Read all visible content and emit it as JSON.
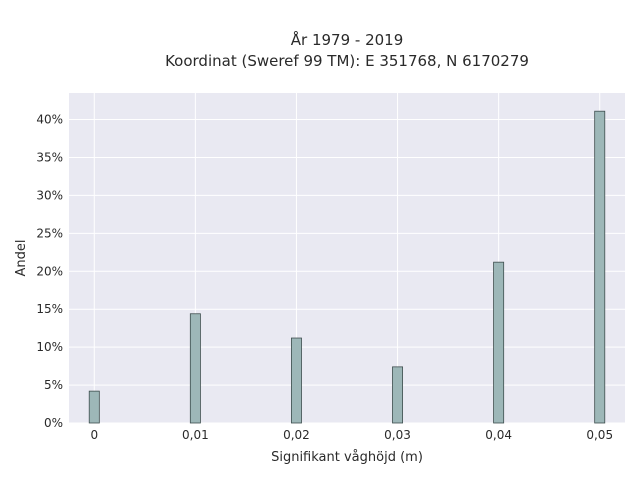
{
  "chart_data": {
    "type": "bar",
    "title_line1": "År 1979 - 2019",
    "title_line2": "Koordinat (Sweref 99 TM): E 351768, N 6170279",
    "xlabel": "Signifikant våghöjd (m)",
    "ylabel": "Andel",
    "x_tick_labels": [
      "0",
      "0,01",
      "0,02",
      "0,03",
      "0,04",
      "0,05"
    ],
    "y_tick_labels": [
      "0%",
      "5%",
      "10%",
      "15%",
      "20%",
      "25%",
      "30%",
      "35%",
      "40%"
    ],
    "x_values": [
      0,
      0.01,
      0.02,
      0.03,
      0.04,
      0.05
    ],
    "values": [
      4.2,
      14.4,
      11.2,
      7.4,
      21.2,
      41.1
    ],
    "xlim": [
      -0.0025,
      0.0525
    ],
    "ylim": [
      0,
      43.5
    ],
    "y_ticks": [
      0,
      5,
      10,
      15,
      20,
      25,
      30,
      35,
      40
    ],
    "bar_width": 0.001,
    "grid": true,
    "colors": {
      "plot_bg": "#e9e9f2",
      "grid": "#ffffff",
      "bar_fill": "#9db7b8",
      "bar_stroke": "#3d4d4d"
    }
  }
}
